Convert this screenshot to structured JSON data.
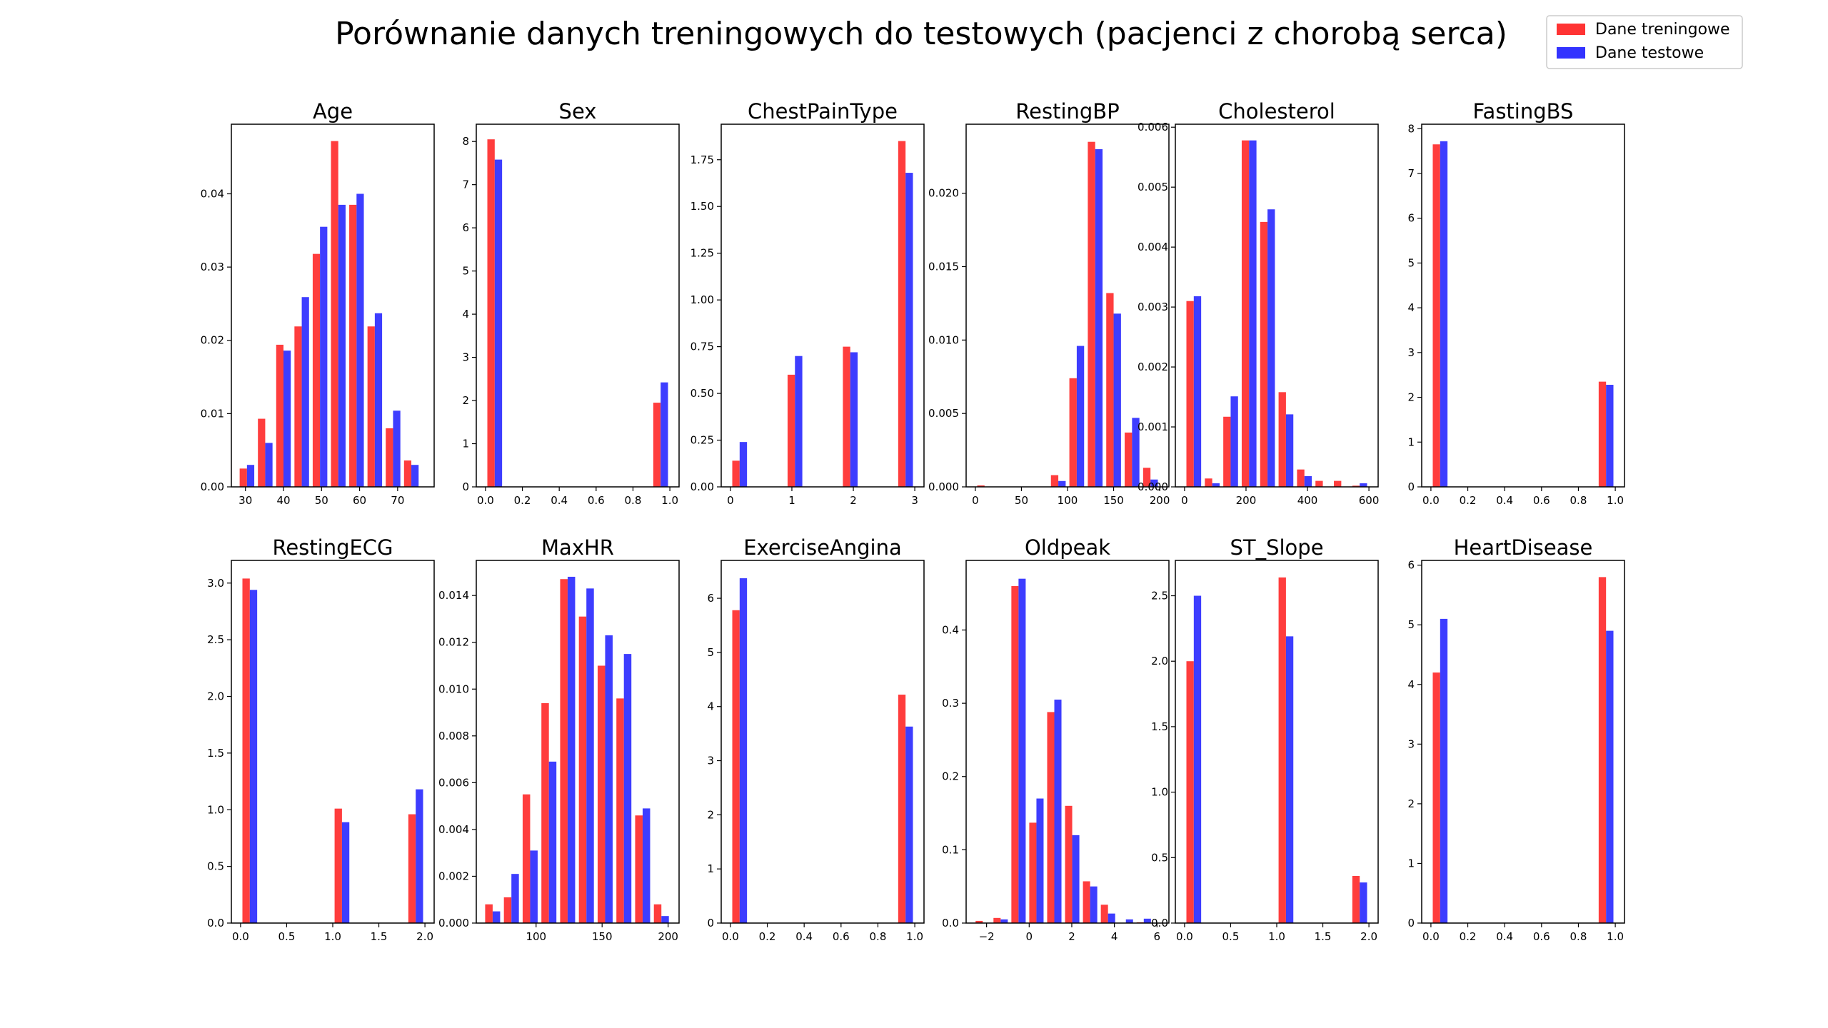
{
  "figure": {
    "title": "Porównanie danych treningowych do testowych (pacjenci z chorobą serca)",
    "legend": {
      "placement": "top-right",
      "items": [
        {
          "label": "Dane treningowe",
          "color": "#ff3333"
        },
        {
          "label": "Dane testowe",
          "color": "#3333ff"
        }
      ]
    }
  },
  "chart_data": [
    {
      "type": "bar",
      "title": "Age",
      "xlim": [
        26.3,
        79.6
      ],
      "ylim": [
        0,
        0.0495
      ],
      "xticks": [
        30,
        40,
        50,
        60,
        70
      ],
      "xtick_labels": [
        "30",
        "40",
        "50",
        "60",
        "70"
      ],
      "yticks": [
        0,
        0.01,
        0.02,
        0.03,
        0.04
      ],
      "ytick_labels": [
        "0.00",
        "0.01",
        "0.02",
        "0.03",
        "0.04"
      ],
      "bin_edges": [
        28.0,
        32.8,
        37.6,
        42.4,
        47.2,
        52.0,
        56.8,
        61.6,
        66.4,
        71.2,
        76.0
      ],
      "series": [
        {
          "name": "Dane treningowe",
          "color": "#ff3333",
          "values": [
            0.0025,
            0.0093,
            0.0194,
            0.0219,
            0.0318,
            0.0472,
            0.0385,
            0.0219,
            0.008,
            0.0036
          ]
        },
        {
          "name": "Dane testowe",
          "color": "#3333ff",
          "values": [
            0.003,
            0.006,
            0.0186,
            0.0259,
            0.0355,
            0.0385,
            0.04,
            0.0237,
            0.0104,
            0.003
          ]
        }
      ]
    },
    {
      "type": "bar",
      "title": "Sex",
      "xlim": [
        -0.05,
        1.05
      ],
      "ylim": [
        0,
        8.4
      ],
      "xticks": [
        0,
        0.2,
        0.4,
        0.6,
        0.8,
        1.0
      ],
      "xtick_labels": [
        "0.0",
        "0.2",
        "0.4",
        "0.6",
        "0.8",
        "1.0"
      ],
      "yticks": [
        0,
        1,
        2,
        3,
        4,
        5,
        6,
        7,
        8
      ],
      "ytick_labels": [
        "0",
        "1",
        "2",
        "3",
        "4",
        "5",
        "6",
        "7",
        "8"
      ],
      "bin_edges": [
        0,
        0.1,
        0.2,
        0.3,
        0.4,
        0.5,
        0.6,
        0.7,
        0.8,
        0.9,
        1.0
      ],
      "series": [
        {
          "name": "Dane treningowe",
          "color": "#ff3333",
          "values": [
            8.05,
            0,
            0,
            0,
            0,
            0,
            0,
            0,
            0,
            1.95
          ]
        },
        {
          "name": "Dane testowe",
          "color": "#3333ff",
          "values": [
            7.58,
            0,
            0,
            0,
            0,
            0,
            0,
            0,
            0,
            2.42
          ]
        }
      ]
    },
    {
      "type": "bar",
      "title": "ChestPainType",
      "xlim": [
        -0.15,
        3.15
      ],
      "ylim": [
        0,
        1.94
      ],
      "xticks": [
        0,
        1,
        2,
        3
      ],
      "xtick_labels": [
        "0",
        "1",
        "2",
        "3"
      ],
      "yticks": [
        0,
        0.25,
        0.5,
        0.75,
        1.0,
        1.25,
        1.5,
        1.75
      ],
      "ytick_labels": [
        "0.00",
        "0.25",
        "0.50",
        "0.75",
        "1.00",
        "1.25",
        "1.50",
        "1.75"
      ],
      "bin_edges": [
        0,
        0.3,
        0.6,
        0.9,
        1.2,
        1.5,
        1.8,
        2.1,
        2.4,
        2.7,
        3.0
      ],
      "series": [
        {
          "name": "Dane treningowe",
          "color": "#ff3333",
          "values": [
            0.14,
            0,
            0,
            0.6,
            0,
            0,
            0.75,
            0,
            0,
            1.85
          ]
        },
        {
          "name": "Dane testowe",
          "color": "#3333ff",
          "values": [
            0.24,
            0,
            0,
            0.7,
            0,
            0,
            0.72,
            0,
            0,
            1.68
          ]
        }
      ]
    },
    {
      "type": "bar",
      "title": "RestingBP",
      "xlim": [
        -10,
        210
      ],
      "ylim": [
        0,
        0.0247
      ],
      "xticks": [
        0,
        50,
        100,
        150,
        200
      ],
      "xtick_labels": [
        "0",
        "50",
        "100",
        "150",
        "200"
      ],
      "yticks": [
        0,
        0.005,
        0.01,
        0.015,
        0.02
      ],
      "ytick_labels": [
        "0.000",
        "0.005",
        "0.010",
        "0.015",
        "0.020"
      ],
      "bin_edges": [
        0,
        20,
        40,
        60,
        80,
        100,
        120,
        140,
        160,
        180,
        200
      ],
      "series": [
        {
          "name": "Dane treningowe",
          "color": "#ff3333",
          "values": [
            0.0001,
            0,
            0,
            0,
            0.0008,
            0.0074,
            0.0235,
            0.0132,
            0.0037,
            0.0013
          ]
        },
        {
          "name": "Dane testowe",
          "color": "#3333ff",
          "values": [
            0,
            0,
            0,
            0,
            0.0004,
            0.0096,
            0.023,
            0.0118,
            0.0047,
            0.0005
          ]
        }
      ]
    },
    {
      "type": "bar",
      "title": "Cholesterol",
      "xlim": [
        -30,
        630
      ],
      "ylim": [
        0,
        0.00605
      ],
      "xticks": [
        0,
        200,
        400,
        600
      ],
      "xtick_labels": [
        "0",
        "200",
        "400",
        "600"
      ],
      "yticks": [
        0,
        0.001,
        0.002,
        0.003,
        0.004,
        0.005,
        0.006
      ],
      "ytick_labels": [
        "0.000",
        "0.001",
        "0.002",
        "0.003",
        "0.004",
        "0.005",
        "0.006"
      ],
      "bin_edges": [
        0,
        60,
        120,
        180,
        240,
        300,
        360,
        420,
        480,
        540,
        600
      ],
      "series": [
        {
          "name": "Dane treningowe",
          "color": "#ff3333",
          "values": [
            0.0031,
            0.00014,
            0.00117,
            0.00578,
            0.00442,
            0.00158,
            0.00029,
            0.0001,
            0.0001,
            2e-05
          ]
        },
        {
          "name": "Dane testowe",
          "color": "#3333ff",
          "values": [
            0.00318,
            6e-05,
            0.00151,
            0.00578,
            0.00463,
            0.00121,
            0.00018,
            0,
            0,
            6e-05
          ]
        }
      ]
    },
    {
      "type": "bar",
      "title": "FastingBS",
      "xlim": [
        -0.05,
        1.05
      ],
      "ylim": [
        0,
        8.1
      ],
      "xticks": [
        0,
        0.2,
        0.4,
        0.6,
        0.8,
        1.0
      ],
      "xtick_labels": [
        "0.0",
        "0.2",
        "0.4",
        "0.6",
        "0.8",
        "1.0"
      ],
      "yticks": [
        0,
        1,
        2,
        3,
        4,
        5,
        6,
        7,
        8
      ],
      "ytick_labels": [
        "0",
        "1",
        "2",
        "3",
        "4",
        "5",
        "6",
        "7",
        "8"
      ],
      "bin_edges": [
        0,
        0.1,
        0.2,
        0.3,
        0.4,
        0.5,
        0.6,
        0.7,
        0.8,
        0.9,
        1.0
      ],
      "series": [
        {
          "name": "Dane treningowe",
          "color": "#ff3333",
          "values": [
            7.65,
            0,
            0,
            0,
            0,
            0,
            0,
            0,
            0,
            2.35
          ]
        },
        {
          "name": "Dane testowe",
          "color": "#3333ff",
          "values": [
            7.72,
            0,
            0,
            0,
            0,
            0,
            0,
            0,
            0,
            2.28
          ]
        }
      ]
    },
    {
      "type": "bar",
      "title": "RestingECG",
      "xlim": [
        -0.1,
        2.1
      ],
      "ylim": [
        0,
        3.2
      ],
      "xticks": [
        0,
        0.5,
        1.0,
        1.5,
        2.0
      ],
      "xtick_labels": [
        "0.0",
        "0.5",
        "1.0",
        "1.5",
        "2.0"
      ],
      "yticks": [
        0,
        0.5,
        1.0,
        1.5,
        2.0,
        2.5,
        3.0
      ],
      "ytick_labels": [
        "0.0",
        "0.5",
        "1.0",
        "1.5",
        "2.0",
        "2.5",
        "3.0"
      ],
      "bin_edges": [
        0,
        0.2,
        0.4,
        0.6,
        0.8,
        1.0,
        1.2,
        1.4,
        1.6,
        1.8,
        2.0
      ],
      "series": [
        {
          "name": "Dane treningowe",
          "color": "#ff3333",
          "values": [
            3.04,
            0,
            0,
            0,
            0,
            1.01,
            0,
            0,
            0,
            0.96
          ]
        },
        {
          "name": "Dane testowe",
          "color": "#3333ff",
          "values": [
            2.94,
            0,
            0,
            0,
            0,
            0.89,
            0,
            0,
            0,
            1.18
          ]
        }
      ]
    },
    {
      "type": "bar",
      "title": "MaxHR",
      "xlim": [
        54.7,
        208.3
      ],
      "ylim": [
        0,
        0.0155
      ],
      "xticks": [
        100,
        150,
        200
      ],
      "xtick_labels": [
        "100",
        "150",
        "200"
      ],
      "yticks": [
        0,
        0.002,
        0.004,
        0.006,
        0.008,
        0.01,
        0.012,
        0.014
      ],
      "ytick_labels": [
        "0.000",
        "0.002",
        "0.004",
        "0.006",
        "0.008",
        "0.010",
        "0.012",
        "0.014"
      ],
      "bin_edges": [
        60.0,
        74.2,
        88.4,
        102.6,
        116.8,
        131.0,
        145.2,
        159.4,
        173.6,
        187.8,
        202.0
      ],
      "series": [
        {
          "name": "Dane treningowe",
          "color": "#ff3333",
          "values": [
            0.0008,
            0.0011,
            0.0055,
            0.0094,
            0.0147,
            0.0131,
            0.011,
            0.0096,
            0.0046,
            0.0008
          ]
        },
        {
          "name": "Dane testowe",
          "color": "#3333ff",
          "values": [
            0.0005,
            0.0021,
            0.0031,
            0.0069,
            0.0148,
            0.0143,
            0.0123,
            0.0115,
            0.0049,
            0.0003
          ]
        }
      ]
    },
    {
      "type": "bar",
      "title": "ExerciseAngina",
      "xlim": [
        -0.05,
        1.05
      ],
      "ylim": [
        0,
        6.7
      ],
      "xticks": [
        0,
        0.2,
        0.4,
        0.6,
        0.8,
        1.0
      ],
      "xtick_labels": [
        "0.0",
        "0.2",
        "0.4",
        "0.6",
        "0.8",
        "1.0"
      ],
      "yticks": [
        0,
        1,
        2,
        3,
        4,
        5,
        6
      ],
      "ytick_labels": [
        "0",
        "1",
        "2",
        "3",
        "4",
        "5",
        "6"
      ],
      "bin_edges": [
        0,
        0.1,
        0.2,
        0.3,
        0.4,
        0.5,
        0.6,
        0.7,
        0.8,
        0.9,
        1.0
      ],
      "series": [
        {
          "name": "Dane treningowe",
          "color": "#ff3333",
          "values": [
            5.78,
            0,
            0,
            0,
            0,
            0,
            0,
            0,
            0,
            4.22
          ]
        },
        {
          "name": "Dane testowe",
          "color": "#3333ff",
          "values": [
            6.37,
            0,
            0,
            0,
            0,
            0,
            0,
            0,
            0,
            3.63
          ]
        }
      ]
    },
    {
      "type": "bar",
      "title": "Oldpeak",
      "xlim": [
        -2.96,
        6.56
      ],
      "ylim": [
        0,
        0.495
      ],
      "xticks": [
        -2,
        0,
        2,
        4,
        6
      ],
      "xtick_labels": [
        "−2",
        "0",
        "2",
        "4",
        "6"
      ],
      "yticks": [
        0,
        0.1,
        0.2,
        0.3,
        0.4
      ],
      "ytick_labels": [
        "0.0",
        "0.1",
        "0.2",
        "0.3",
        "0.4"
      ],
      "bin_edges": [
        -2.6,
        -1.76,
        -0.92,
        -0.08,
        0.76,
        1.6,
        2.44,
        3.28,
        4.12,
        4.96,
        5.8
      ],
      "series": [
        {
          "name": "Dane treningowe",
          "color": "#ff3333",
          "values": [
            0.003,
            0.007,
            0.46,
            0.137,
            0.288,
            0.16,
            0.057,
            0.025,
            0,
            0.001
          ]
        },
        {
          "name": "Dane testowe",
          "color": "#3333ff",
          "values": [
            0,
            0.005,
            0.47,
            0.17,
            0.305,
            0.12,
            0.05,
            0.013,
            0.005,
            0.006
          ]
        }
      ]
    },
    {
      "type": "bar",
      "title": "ST_Slope",
      "xlim": [
        -0.1,
        2.1
      ],
      "ylim": [
        0,
        2.77
      ],
      "xticks": [
        0,
        0.5,
        1.0,
        1.5,
        2.0
      ],
      "xtick_labels": [
        "0.0",
        "0.5",
        "1.0",
        "1.5",
        "2.0"
      ],
      "yticks": [
        0,
        0.5,
        1.0,
        1.5,
        2.0,
        2.5
      ],
      "ytick_labels": [
        "0.0",
        "0.5",
        "1.0",
        "1.5",
        "2.0",
        "2.5"
      ],
      "bin_edges": [
        0,
        0.2,
        0.4,
        0.6,
        0.8,
        1.0,
        1.2,
        1.4,
        1.6,
        1.8,
        2.0
      ],
      "series": [
        {
          "name": "Dane treningowe",
          "color": "#ff3333",
          "values": [
            2.0,
            0,
            0,
            0,
            0,
            2.64,
            0,
            0,
            0,
            0.36
          ]
        },
        {
          "name": "Dane testowe",
          "color": "#3333ff",
          "values": [
            2.5,
            0,
            0,
            0,
            0,
            2.19,
            0,
            0,
            0,
            0.31
          ]
        }
      ]
    },
    {
      "type": "bar",
      "title": "HeartDisease",
      "xlim": [
        -0.05,
        1.05
      ],
      "ylim": [
        0,
        6.08
      ],
      "xticks": [
        0,
        0.2,
        0.4,
        0.6,
        0.8,
        1.0
      ],
      "xtick_labels": [
        "0.0",
        "0.2",
        "0.4",
        "0.6",
        "0.8",
        "1.0"
      ],
      "yticks": [
        0,
        1,
        2,
        3,
        4,
        5,
        6
      ],
      "ytick_labels": [
        "0",
        "1",
        "2",
        "3",
        "4",
        "5",
        "6"
      ],
      "bin_edges": [
        0,
        0.1,
        0.2,
        0.3,
        0.4,
        0.5,
        0.6,
        0.7,
        0.8,
        0.9,
        1.0
      ],
      "series": [
        {
          "name": "Dane treningowe",
          "color": "#ff3333",
          "values": [
            4.2,
            0,
            0,
            0,
            0,
            0,
            0,
            0,
            0,
            5.8
          ]
        },
        {
          "name": "Dane testowe",
          "color": "#3333ff",
          "values": [
            5.1,
            0,
            0,
            0,
            0,
            0,
            0,
            0,
            0,
            4.9
          ]
        }
      ]
    }
  ]
}
